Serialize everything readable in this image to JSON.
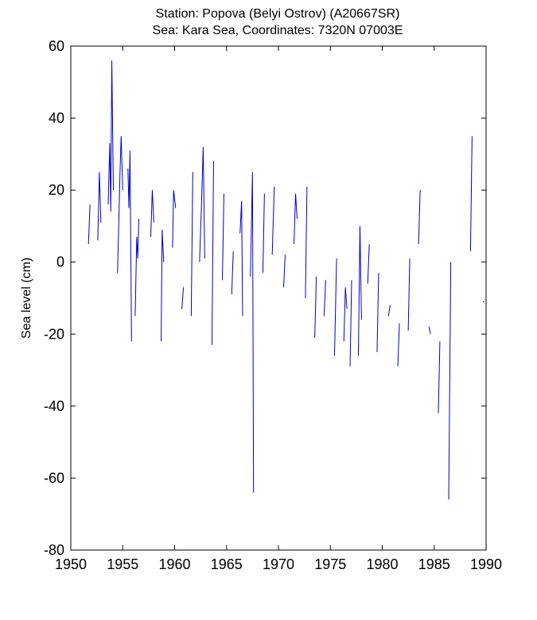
{
  "chart_data": {
    "type": "line",
    "title": "Station: Popova (Belyi Ostrov)  (A20667SR)",
    "subtitle": "Sea: Kara Sea, Coordinates: 7320N 07003E",
    "xlabel": "",
    "ylabel": "Sea level (cm)",
    "xlim": [
      1950,
      1990
    ],
    "ylim": [
      -80,
      60
    ],
    "x_ticks": [
      "1950",
      "1955",
      "1960",
      "1965",
      "1970",
      "1975",
      "1980",
      "1985",
      "1990"
    ],
    "y_ticks": [
      "-80",
      "-60",
      "-40",
      "-20",
      "0",
      "20",
      "40",
      "60"
    ],
    "grid": false,
    "line_color": "#0000cc",
    "series": [
      {
        "segments": [
          [
            [
              1951.7,
              5
            ],
            [
              1951.85,
              16
            ]
          ],
          [
            [
              1952.6,
              6
            ],
            [
              1952.75,
              25
            ],
            [
              1952.9,
              11
            ]
          ],
          [
            [
              1953.6,
              16
            ],
            [
              1953.75,
              33
            ],
            [
              1953.85,
              14
            ],
            [
              1953.95,
              56
            ],
            [
              1954.1,
              20
            ]
          ],
          [
            [
              1954.5,
              -3
            ],
            [
              1954.75,
              26
            ],
            [
              1954.85,
              35
            ],
            [
              1955.0,
              20
            ]
          ],
          [
            [
              1955.5,
              26
            ],
            [
              1955.6,
              15
            ],
            [
              1955.7,
              31
            ],
            [
              1955.85,
              -22
            ]
          ],
          [
            [
              1956.2,
              -15
            ],
            [
              1956.35,
              7
            ],
            [
              1956.45,
              1
            ],
            [
              1956.55,
              12
            ]
          ],
          [
            [
              1957.7,
              7
            ],
            [
              1957.85,
              20
            ],
            [
              1958.0,
              11
            ]
          ],
          [
            [
              1958.7,
              -22
            ],
            [
              1958.8,
              9
            ],
            [
              1958.95,
              0
            ]
          ],
          [
            [
              1959.8,
              4
            ],
            [
              1959.9,
              20
            ],
            [
              1960.1,
              15
            ]
          ],
          [
            [
              1960.7,
              -13
            ],
            [
              1960.85,
              -7
            ]
          ],
          [
            [
              1961.6,
              -15
            ],
            [
              1961.75,
              25
            ]
          ],
          [
            [
              1962.4,
              0
            ],
            [
              1962.6,
              17
            ],
            [
              1962.75,
              32
            ],
            [
              1962.9,
              1
            ]
          ],
          [
            [
              1963.6,
              -23
            ],
            [
              1963.75,
              28
            ]
          ],
          [
            [
              1964.6,
              -5
            ],
            [
              1964.75,
              19
            ]
          ],
          [
            [
              1965.5,
              -9
            ],
            [
              1965.65,
              3
            ]
          ],
          [
            [
              1966.3,
              8
            ],
            [
              1966.45,
              17
            ],
            [
              1966.55,
              -15
            ]
          ],
          [
            [
              1967.3,
              -4
            ],
            [
              1967.5,
              25
            ],
            [
              1967.6,
              -64
            ]
          ],
          [
            [
              1968.5,
              -3
            ],
            [
              1968.65,
              19
            ]
          ],
          [
            [
              1969.4,
              2
            ],
            [
              1969.6,
              21
            ]
          ],
          [
            [
              1970.5,
              -7
            ],
            [
              1970.65,
              2
            ]
          ],
          [
            [
              1971.5,
              5
            ],
            [
              1971.65,
              19
            ],
            [
              1971.8,
              12
            ]
          ],
          [
            [
              1972.6,
              -10
            ],
            [
              1972.75,
              21
            ]
          ],
          [
            [
              1973.5,
              -21
            ],
            [
              1973.65,
              -4
            ]
          ],
          [
            [
              1974.4,
              -15
            ],
            [
              1974.55,
              -5
            ]
          ],
          [
            [
              1975.4,
              -26
            ],
            [
              1975.6,
              1
            ]
          ],
          [
            [
              1976.3,
              -22
            ],
            [
              1976.45,
              -7
            ],
            [
              1976.6,
              -13
            ]
          ],
          [
            [
              1976.9,
              -29
            ],
            [
              1977.05,
              -5
            ]
          ],
          [
            [
              1977.7,
              -26
            ],
            [
              1977.85,
              10
            ],
            [
              1978.0,
              -16
            ]
          ],
          [
            [
              1978.6,
              -6
            ],
            [
              1978.75,
              5
            ]
          ],
          [
            [
              1979.5,
              -25
            ],
            [
              1979.65,
              -3
            ]
          ],
          [
            [
              1980.6,
              -15
            ],
            [
              1980.75,
              -12
            ]
          ],
          [
            [
              1981.5,
              -29
            ],
            [
              1981.65,
              -17
            ]
          ],
          [
            [
              1982.5,
              -19
            ],
            [
              1982.65,
              1
            ]
          ],
          [
            [
              1983.5,
              5
            ],
            [
              1983.65,
              20
            ]
          ],
          [
            [
              1984.5,
              -18
            ],
            [
              1984.65,
              -20
            ]
          ],
          [
            [
              1985.4,
              -42
            ],
            [
              1985.55,
              -22
            ]
          ],
          [
            [
              1986.4,
              -66
            ],
            [
              1986.6,
              0
            ]
          ],
          [
            [
              1988.5,
              3
            ],
            [
              1988.65,
              35
            ]
          ],
          [
            [
              1989.7,
              -11
            ],
            [
              1989.8,
              -11
            ]
          ]
        ]
      }
    ]
  }
}
